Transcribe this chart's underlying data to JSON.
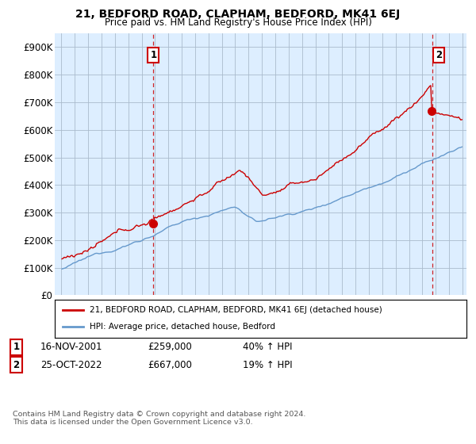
{
  "title": "21, BEDFORD ROAD, CLAPHAM, BEDFORD, MK41 6EJ",
  "subtitle": "Price paid vs. HM Land Registry's House Price Index (HPI)",
  "hpi_label": "HPI: Average price, detached house, Bedford",
  "price_label": "21, BEDFORD ROAD, CLAPHAM, BEDFORD, MK41 6EJ (detached house)",
  "sale1_date": "16-NOV-2001",
  "sale1_price": 259000,
  "sale1_pct": "40%",
  "sale2_date": "25-OCT-2022",
  "sale2_price": 667000,
  "sale2_pct": "19%",
  "footer": "Contains HM Land Registry data © Crown copyright and database right 2024.\nThis data is licensed under the Open Government Licence v3.0.",
  "price_color": "#cc0000",
  "hpi_color": "#6699cc",
  "vline_color": "#cc0000",
  "plot_bg_color": "#ddeeff",
  "background_color": "#ffffff",
  "grid_color": "#aabbcc",
  "ylim": [
    0,
    950000
  ],
  "yticks": [
    0,
    100000,
    200000,
    300000,
    400000,
    500000,
    600000,
    700000,
    800000,
    900000
  ],
  "start_year": 1995,
  "end_year": 2025,
  "t_sale1": 2001.875,
  "t_sale2": 2022.75
}
